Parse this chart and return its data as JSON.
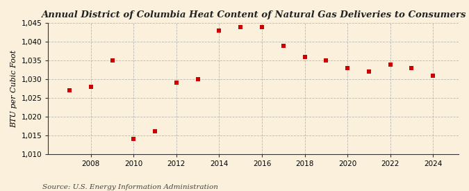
{
  "title": "Annual District of Columbia Heat Content of Natural Gas Deliveries to Consumers",
  "ylabel": "BTU per Cubic Foot",
  "source": "Source: U.S. Energy Information Administration",
  "years": [
    2007,
    2008,
    2009,
    2010,
    2011,
    2012,
    2013,
    2014,
    2015,
    2016,
    2017,
    2018,
    2019,
    2020,
    2021,
    2022,
    2023,
    2024
  ],
  "values": [
    1027.0,
    1028.0,
    1035.0,
    1014.0,
    1016.0,
    1029.0,
    1030.0,
    1043.0,
    1044.0,
    1044.0,
    1039.0,
    1036.0,
    1035.0,
    1033.0,
    1032.0,
    1034.0,
    1033.0,
    1031.0
  ],
  "ylim": [
    1010,
    1045
  ],
  "yticks": [
    1010,
    1015,
    1020,
    1025,
    1030,
    1035,
    1040,
    1045
  ],
  "xticks": [
    2008,
    2010,
    2012,
    2014,
    2016,
    2018,
    2020,
    2022,
    2024
  ],
  "marker_color": "#CC0000",
  "marker": "s",
  "marker_size": 16,
  "bg_color": "#FAF0DC",
  "grid_color": "#AAAAAA",
  "title_fontsize": 9.5,
  "label_fontsize": 8,
  "tick_fontsize": 7.5,
  "source_fontsize": 7.5
}
